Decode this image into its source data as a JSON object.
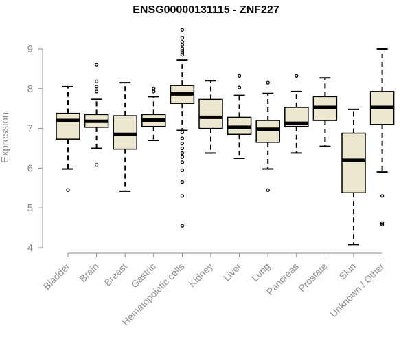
{
  "chart_data": {
    "type": "box",
    "title": "ENSG00000131115 - ZNF227",
    "xlabel": "",
    "ylabel": "Expression",
    "ylim": [
      4,
      9.5
    ],
    "yticks": [
      4,
      5,
      6,
      7,
      8,
      9
    ],
    "grid": false,
    "colors": {
      "box_fill": "#ede7cf",
      "box_stroke": "#000000",
      "axis": "#8c8c8c"
    },
    "categories": [
      "Bladder",
      "Brain",
      "Breast",
      "Gastric",
      "Hematopoietic cells",
      "Kidney",
      "Liver",
      "Lung",
      "Pancreas",
      "Prostate",
      "Skin",
      "Unknown / Other"
    ],
    "boxes": [
      {
        "category": "Bladder",
        "whisker_low": 5.98,
        "q1": 6.73,
        "median": 7.2,
        "q3": 7.38,
        "whisker_high": 8.05,
        "outliers": [
          5.45
        ]
      },
      {
        "category": "Brain",
        "whisker_low": 6.5,
        "q1": 7.03,
        "median": 7.18,
        "q3": 7.35,
        "whisker_high": 7.73,
        "outliers": [
          8.6,
          8.18,
          8.05,
          7.93,
          6.08
        ]
      },
      {
        "category": "Breast",
        "whisker_low": 5.42,
        "q1": 6.48,
        "median": 6.85,
        "q3": 7.32,
        "whisker_high": 8.15,
        "outliers": []
      },
      {
        "category": "Gastric",
        "whisker_low": 6.7,
        "q1": 7.05,
        "median": 7.21,
        "q3": 7.35,
        "whisker_high": 7.8,
        "outliers": [
          8.0,
          7.93
        ]
      },
      {
        "category": "Hematopoietic cells",
        "whisker_low": 6.95,
        "q1": 7.63,
        "median": 7.87,
        "q3": 8.08,
        "whisker_high": 8.72,
        "outliers": [
          9.48,
          9.28,
          9.18,
          9.1,
          9.0,
          8.95,
          8.9,
          8.85,
          6.9,
          6.75,
          6.62,
          6.5,
          6.38,
          6.28,
          6.15,
          5.95,
          5.65,
          5.3,
          4.55
        ]
      },
      {
        "category": "Kidney",
        "whisker_low": 6.38,
        "q1": 7.0,
        "median": 7.28,
        "q3": 7.73,
        "whisker_high": 8.2,
        "outliers": []
      },
      {
        "category": "Liver",
        "whisker_low": 6.25,
        "q1": 6.85,
        "median": 7.03,
        "q3": 7.28,
        "whisker_high": 7.83,
        "outliers": [
          8.32,
          8.03
        ]
      },
      {
        "category": "Lung",
        "whisker_low": 5.98,
        "q1": 6.65,
        "median": 6.98,
        "q3": 7.2,
        "whisker_high": 7.88,
        "outliers": [
          8.15,
          5.45
        ]
      },
      {
        "category": "Pancreas",
        "whisker_low": 6.38,
        "q1": 7.05,
        "median": 7.13,
        "q3": 7.53,
        "whisker_high": 7.93,
        "outliers": [
          8.32
        ]
      },
      {
        "category": "Prostate",
        "whisker_low": 6.55,
        "q1": 7.2,
        "median": 7.53,
        "q3": 7.8,
        "whisker_high": 8.27,
        "outliers": []
      },
      {
        "category": "Skin",
        "whisker_low": 4.08,
        "q1": 5.38,
        "median": 6.2,
        "q3": 6.88,
        "whisker_high": 7.48,
        "outliers": []
      },
      {
        "category": "Unknown / Other",
        "whisker_low": 5.9,
        "q1": 7.1,
        "median": 7.53,
        "q3": 7.93,
        "whisker_high": 9.0,
        "outliers": [
          5.3,
          4.62,
          4.58
        ]
      }
    ]
  }
}
